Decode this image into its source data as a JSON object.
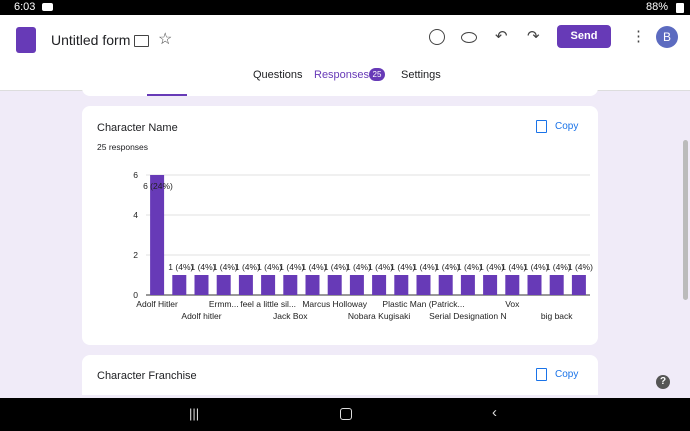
{
  "status_bar": {
    "time": "6:03",
    "battery": "88%"
  },
  "header": {
    "title": "Untitled form",
    "send": "Send",
    "avatar": "B"
  },
  "tabs": {
    "questions": "Questions",
    "responses": "Responses",
    "responses_count": "25",
    "settings": "Settings"
  },
  "card1": {
    "title": "Character Name",
    "responses": "25 responses",
    "copy": "Copy",
    "chart": {
      "type": "bar",
      "color": "#673ab7",
      "categories": [
        "Adolf Hitler",
        null,
        "Adolf hitler",
        "Ermm...",
        null,
        "feel a little sil...",
        "Jack Box",
        null,
        "Marcus Holloway",
        null,
        "Nobara Kugisaki",
        null,
        "Plastic Man (Patrick...",
        null,
        "Serial Designation N",
        null,
        "Vox",
        null,
        "big back",
        null
      ],
      "values": [
        6,
        1,
        1,
        1,
        1,
        1,
        1,
        1,
        1,
        1,
        1,
        1,
        1,
        1,
        1,
        1,
        1,
        1,
        1,
        1
      ],
      "value_labels": [
        "6 (24%)",
        "1 (4%)",
        "1 (4%)",
        "1 (4%)",
        "1 (4%)",
        "1 (4%)",
        "1 (4%)",
        "1 (4%)",
        "1 (4%)",
        "1 (4%)",
        "1 (4%)",
        "1 (4%)",
        "1 (4%)",
        "1 (4%)",
        "1 (4%)",
        "1 (4%)",
        "1 (4%)",
        "1 (4%)",
        "1 (4%)",
        "1 (4%)"
      ],
      "ylim": [
        0,
        6
      ],
      "yticks": [
        0,
        2,
        4,
        6
      ],
      "grid": true
    }
  },
  "card2": {
    "title": "Character Franchise",
    "copy": "Copy"
  },
  "help_icon": "?"
}
